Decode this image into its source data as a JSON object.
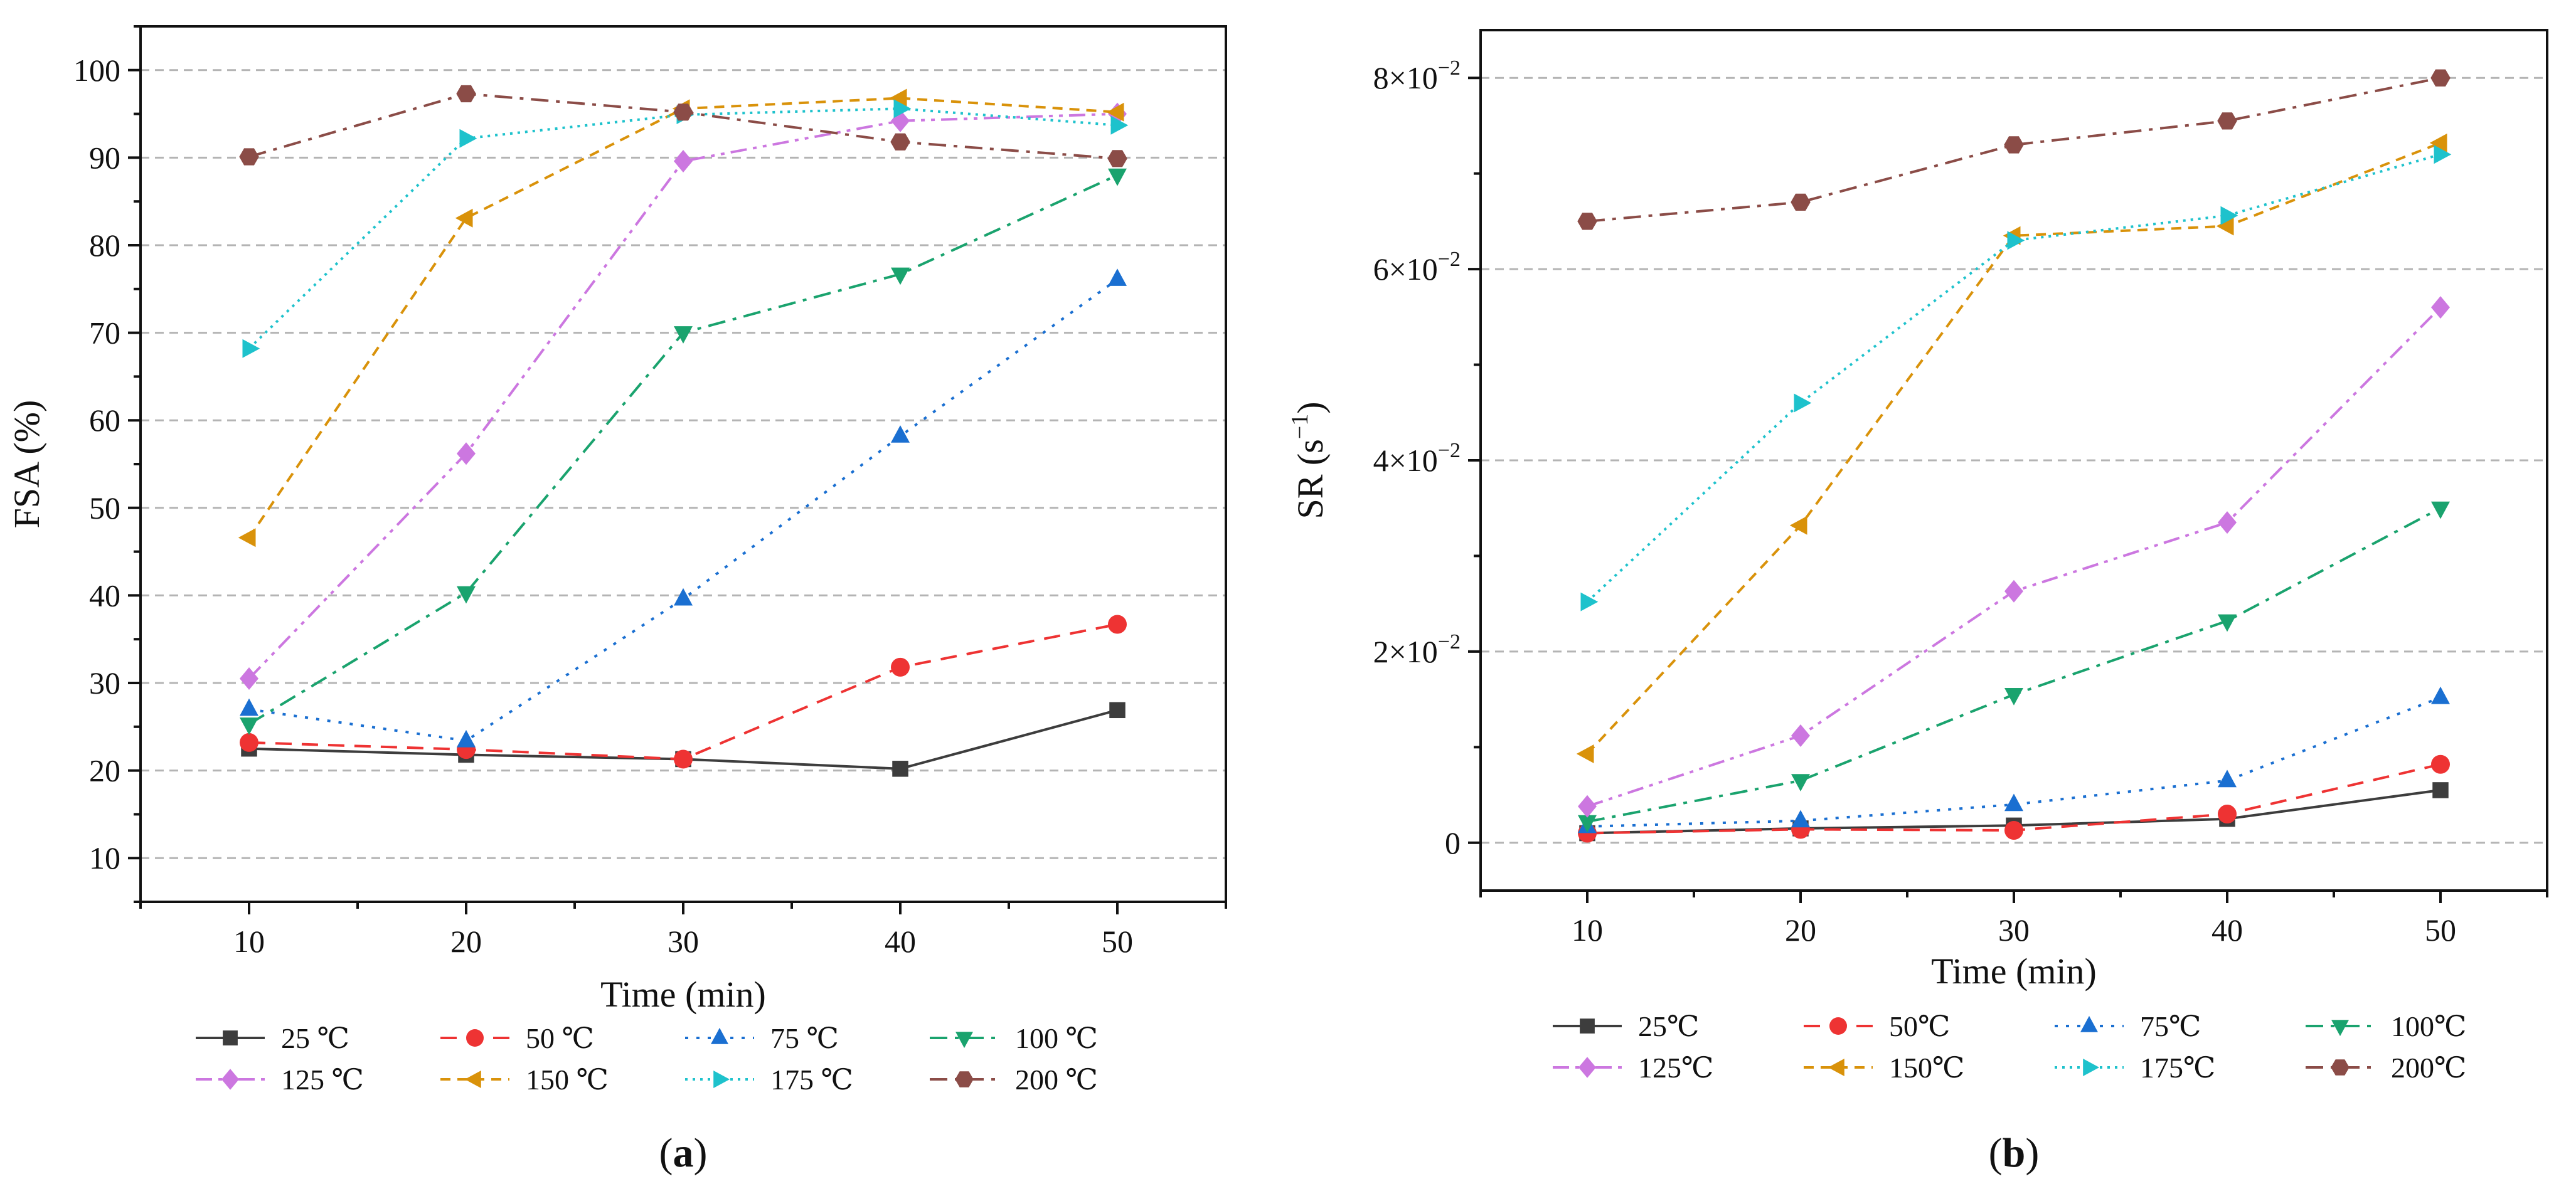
{
  "chart_data": [
    {
      "type": "line",
      "panel_caption": "(a)",
      "caption_letter": "a",
      "xlabel": "Time (min)",
      "ylabel": "FSA (%)",
      "x": [
        10,
        20,
        30,
        40,
        50
      ],
      "xlim": [
        5,
        55
      ],
      "ylim": [
        5,
        105
      ],
      "x_ticks": [
        10,
        20,
        30,
        40,
        50
      ],
      "y_ticks": [
        10,
        20,
        30,
        40,
        50,
        60,
        70,
        80,
        90,
        100
      ],
      "y_gridlines": [
        10,
        20,
        30,
        40,
        50,
        60,
        70,
        80,
        90,
        100
      ],
      "series": [
        {
          "name": "25 ℃",
          "color": "#3d3d3d",
          "marker": "square",
          "dash": "solid",
          "values": [
            22.5,
            21.8,
            21.3,
            20.2,
            26.9
          ]
        },
        {
          "name": "50 ℃",
          "color": "#ee3333",
          "marker": "circle",
          "dash": "dash",
          "values": [
            23.2,
            22.4,
            21.3,
            31.8,
            36.7
          ]
        },
        {
          "name": "75 ℃",
          "color": "#1a6fd1",
          "marker": "triangle-up",
          "dash": "dot",
          "values": [
            27.0,
            23.4,
            39.6,
            58.2,
            76.1
          ]
        },
        {
          "name": "100 ℃",
          "color": "#1aa36e",
          "marker": "triangle-down",
          "dash": "dashdot",
          "values": [
            25.3,
            40.3,
            70.0,
            76.7,
            88.0
          ]
        },
        {
          "name": "125 ℃",
          "color": "#cc77e0",
          "marker": "diamond",
          "dash": "dashdotdot",
          "values": [
            30.5,
            56.2,
            89.6,
            94.2,
            95.0
          ]
        },
        {
          "name": "150 ℃",
          "color": "#d9920a",
          "marker": "triangle-left",
          "dash": "shortdash",
          "values": [
            46.6,
            83.1,
            95.6,
            96.8,
            95.2
          ]
        },
        {
          "name": "175 ℃",
          "color": "#1ec2cc",
          "marker": "triangle-right",
          "dash": "shortdot",
          "values": [
            68.2,
            92.2,
            94.9,
            95.6,
            93.7
          ]
        },
        {
          "name": "200 ℃",
          "color": "#8b4c47",
          "marker": "hexagon",
          "dash": "dashdot",
          "values": [
            90.1,
            97.3,
            95.2,
            91.8,
            89.9
          ]
        }
      ]
    },
    {
      "type": "line",
      "panel_caption": "(b)",
      "caption_letter": "b",
      "xlabel": "Time (min)",
      "ylabel": "SR (s−1)",
      "ylabel_base": "SR (s",
      "ylabel_exp": "−1",
      "ylabel_close": ")",
      "x": [
        10,
        20,
        30,
        40,
        50
      ],
      "xlim": [
        5,
        55
      ],
      "ylim": [
        -0.005,
        0.085
      ],
      "x_ticks": [
        10,
        20,
        30,
        40,
        50
      ],
      "y_ticks": [
        0,
        0.02,
        0.04,
        0.06,
        0.08
      ],
      "y_tick_labels": [
        {
          "mantissa": "0",
          "exponent": ""
        },
        {
          "mantissa": "2×10",
          "exponent": "−2"
        },
        {
          "mantissa": "4×10",
          "exponent": "−2"
        },
        {
          "mantissa": "6×10",
          "exponent": "−2"
        },
        {
          "mantissa": "8×10",
          "exponent": "−2"
        }
      ],
      "y_gridlines": [
        0,
        0.02,
        0.04,
        0.06,
        0.08
      ],
      "series": [
        {
          "name": "25℃",
          "color": "#3d3d3d",
          "marker": "square",
          "dash": "solid",
          "values": [
            0.001,
            0.0015,
            0.0018,
            0.0025,
            0.0055
          ]
        },
        {
          "name": "50℃",
          "color": "#ee3333",
          "marker": "circle",
          "dash": "dash",
          "values": [
            0.001,
            0.0014,
            0.0013,
            0.003,
            0.0082
          ]
        },
        {
          "name": "75℃",
          "color": "#1a6fd1",
          "marker": "triangle-up",
          "dash": "dot",
          "values": [
            0.0017,
            0.0023,
            0.004,
            0.0065,
            0.0152
          ]
        },
        {
          "name": "100℃",
          "color": "#1aa36e",
          "marker": "triangle-down",
          "dash": "dashdot",
          "values": [
            0.0022,
            0.0065,
            0.0155,
            0.0232,
            0.035
          ]
        },
        {
          "name": "125℃",
          "color": "#cc77e0",
          "marker": "diamond",
          "dash": "dashdotdot",
          "values": [
            0.0038,
            0.0112,
            0.0263,
            0.0335,
            0.056
          ]
        },
        {
          "name": "150℃",
          "color": "#d9920a",
          "marker": "triangle-left",
          "dash": "shortdash",
          "values": [
            0.0093,
            0.0332,
            0.0635,
            0.0645,
            0.0732
          ]
        },
        {
          "name": "175℃",
          "color": "#1ec2cc",
          "marker": "triangle-right",
          "dash": "shortdot",
          "values": [
            0.0252,
            0.046,
            0.063,
            0.0656,
            0.072
          ]
        },
        {
          "name": "200℃",
          "color": "#8b4c47",
          "marker": "hexagon",
          "dash": "dashdot",
          "values": [
            0.065,
            0.067,
            0.073,
            0.0755,
            0.08
          ]
        }
      ]
    }
  ]
}
